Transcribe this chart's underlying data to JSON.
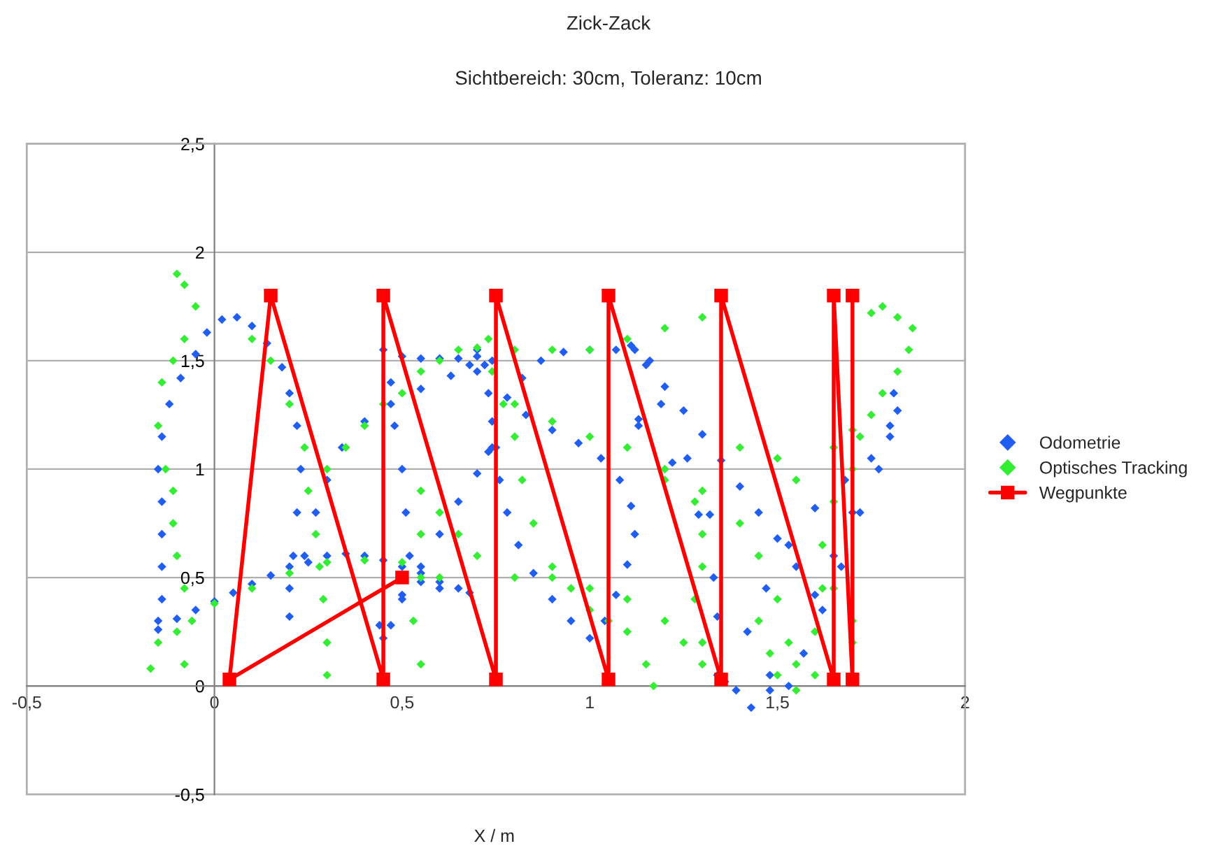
{
  "chart_data": {
    "type": "scatter",
    "title": "Zick-Zack",
    "subtitle": "Sichtbereich: 30cm, Toleranz: 10cm",
    "xlabel": "X / m",
    "xlim": [
      -0.5,
      2
    ],
    "ylim": [
      -0.5,
      2.5
    ],
    "xticks": [
      {
        "value": -0.5,
        "label": "-0,5"
      },
      0,
      {
        "value": 0.5,
        "label": "0,5"
      },
      1,
      {
        "value": 1.5,
        "label": "1,5"
      },
      2
    ],
    "yticks": [
      {
        "value": -0.5,
        "label": "-0,5"
      },
      0,
      {
        "value": 0.5,
        "label": "0,5"
      },
      1,
      {
        "value": 1.5,
        "label": "1,5"
      },
      2,
      {
        "value": 2.5,
        "label": "2,5"
      }
    ],
    "grid": "y",
    "legend": "right",
    "series": [
      {
        "name": "Odometrie",
        "marker": "diamond",
        "color": "#1f5ef0",
        "x": [
          -0.15,
          -0.1,
          -0.05,
          0,
          0.05,
          0.1,
          0.15,
          0.2,
          0.25,
          0.3,
          0.35,
          0.4,
          0.45,
          0.5,
          0.55,
          0.6,
          0.65,
          0.68,
          0.6,
          0.55,
          -0.15,
          -0.14,
          -0.14,
          -0.14,
          -0.14,
          -0.15,
          -0.14,
          -0.12,
          -0.09,
          -0.05,
          -0.02,
          0.02,
          0.06,
          0.1,
          0.14,
          0.18,
          0.2,
          0.22,
          0.23,
          0.22,
          0.21,
          0.2,
          0.2,
          0.24,
          0.27,
          0.3,
          0.34,
          0.4,
          0.47,
          0.55,
          0.63,
          0.72,
          0.45,
          0.5,
          0.55,
          0.6,
          0.65,
          0.7,
          0.74,
          0.7,
          0.68,
          0.47,
          0.48,
          0.5,
          0.51,
          0.52,
          0.5,
          0.47,
          0.45,
          0.44,
          0.5,
          0.55,
          0.6,
          0.65,
          0.7,
          0.74,
          0.7,
          0.73,
          0.74,
          0.73,
          0.78,
          0.82,
          0.87,
          0.93,
          1.0,
          1.07,
          1.12,
          1.16,
          0.83,
          0.9,
          0.97,
          1.03,
          1.08,
          1.11,
          1.12,
          1.1,
          1.07,
          1.04,
          1.0,
          0.95,
          0.9,
          0.85,
          0.81,
          0.78,
          0.76,
          0.75,
          1.11,
          1.15,
          1.2,
          1.25,
          1.3,
          1.35,
          1.4,
          1.45,
          1.5,
          1.55,
          1.6,
          1.13,
          1.19,
          1.26,
          1.32,
          1.33,
          1.36,
          1.13,
          1.22,
          1.29,
          1.34,
          1.34,
          1.39,
          1.43,
          1.48,
          1.48,
          1.42,
          1.47,
          1.53,
          1.6,
          1.68,
          1.75,
          1.8,
          1.82,
          1.53,
          1.57,
          1.62,
          1.67,
          1.72,
          1.77,
          1.8,
          1.65,
          1.7,
          1.81
        ],
        "values": [
          0.26,
          0.31,
          0.35,
          0.39,
          0.43,
          0.47,
          0.51,
          0.55,
          0.57,
          0.6,
          0.61,
          0.6,
          0.58,
          0.55,
          0.52,
          0.48,
          0.45,
          0.43,
          0.45,
          0.48,
          0.3,
          0.4,
          0.55,
          0.7,
          0.85,
          1.0,
          1.15,
          1.3,
          1.42,
          1.53,
          1.63,
          1.69,
          1.7,
          1.66,
          1.58,
          1.47,
          1.35,
          1.2,
          1.0,
          0.8,
          0.6,
          0.45,
          0.32,
          0.6,
          0.8,
          0.95,
          1.1,
          1.22,
          1.3,
          1.37,
          1.43,
          1.48,
          1.55,
          1.52,
          1.51,
          1.51,
          1.51,
          1.52,
          1.5,
          1.55,
          1.48,
          1.4,
          1.2,
          1.0,
          0.8,
          0.6,
          0.4,
          0.28,
          0.22,
          0.28,
          0.42,
          0.55,
          0.7,
          0.85,
          0.98,
          1.1,
          1.45,
          1.35,
          1.22,
          1.08,
          1.33,
          1.42,
          1.5,
          1.54,
          1.55,
          1.55,
          1.55,
          1.5,
          1.25,
          1.18,
          1.12,
          1.05,
          0.95,
          0.83,
          0.7,
          0.56,
          0.42,
          0.3,
          0.22,
          0.3,
          0.4,
          0.52,
          0.65,
          0.8,
          0.95,
          1.1,
          1.57,
          1.48,
          1.38,
          1.27,
          1.16,
          1.04,
          0.92,
          0.8,
          0.68,
          0.55,
          0.42,
          1.23,
          1.3,
          1.05,
          0.79,
          0.5,
          0.02,
          1.2,
          1.03,
          0.79,
          0.32,
          0.05,
          -0.02,
          -0.1,
          -0.02,
          0.05,
          0.25,
          0.45,
          0.65,
          0.82,
          0.95,
          1.05,
          1.2,
          1.27,
          0.0,
          0.15,
          0.35,
          0.55,
          0.8,
          1.0,
          1.15,
          0.6,
          0.8,
          1.35
        ]
      },
      {
        "name": "Optisches Tracking",
        "marker": "diamond",
        "color": "#33ee33",
        "x": [
          -0.17,
          -0.15,
          -0.08,
          -0.1,
          -0.08,
          -0.05,
          -0.08,
          -0.11,
          -0.14,
          -0.15,
          -0.13,
          -0.11,
          -0.11,
          -0.1,
          -0.08,
          -0.06,
          -0.1,
          0.0,
          0.1,
          0.2,
          0.3,
          0.4,
          0.5,
          0.6,
          0.1,
          0.15,
          0.2,
          0.24,
          0.25,
          0.27,
          0.28,
          0.29,
          0.3,
          0.3,
          0.3,
          0.35,
          0.4,
          0.45,
          0.5,
          0.55,
          0.6,
          0.65,
          0.7,
          0.55,
          0.55,
          0.55,
          0.53,
          0.55,
          0.6,
          0.65,
          0.7,
          0.73,
          0.74,
          0.77,
          0.8,
          0.82,
          0.85,
          0.9,
          0.95,
          1.0,
          1.05,
          1.1,
          1.15,
          1.17,
          0.8,
          0.9,
          1.0,
          1.1,
          1.2,
          1.3,
          0.8,
          0.9,
          1.0,
          1.1,
          1.2,
          1.28,
          1.3,
          1.3,
          1.28,
          1.3,
          0.8,
          0.9,
          1.0,
          1.1,
          1.2,
          1.25,
          1.3,
          1.2,
          1.3,
          1.4,
          1.45,
          1.5,
          1.53,
          1.55,
          1.45,
          1.48,
          1.5,
          1.55,
          1.6,
          1.62,
          1.62,
          1.65,
          1.7,
          1.72,
          1.75,
          1.78,
          1.82,
          1.85,
          1.86,
          1.82,
          1.78,
          1.75,
          1.65,
          1.7,
          1.7,
          1.6,
          1.4,
          1.5,
          1.55,
          1.65,
          1.7
        ],
        "values": [
          0.08,
          0.2,
          0.1,
          1.9,
          1.85,
          1.75,
          1.6,
          1.5,
          1.4,
          1.2,
          1.0,
          0.9,
          0.75,
          0.6,
          0.45,
          0.3,
          0.25,
          0.38,
          0.45,
          0.52,
          0.57,
          0.58,
          0.57,
          0.5,
          1.6,
          1.5,
          1.3,
          1.1,
          0.9,
          0.7,
          0.55,
          0.4,
          0.2,
          0.05,
          1.0,
          1.1,
          1.2,
          1.3,
          1.35,
          1.45,
          1.5,
          1.55,
          1.56,
          0.9,
          0.7,
          0.5,
          0.3,
          0.1,
          0.8,
          0.7,
          0.6,
          1.6,
          1.45,
          1.3,
          1.15,
          0.95,
          0.75,
          0.55,
          0.45,
          0.35,
          0.3,
          0.25,
          0.1,
          0.0,
          1.55,
          1.55,
          1.55,
          1.6,
          1.65,
          1.7,
          1.3,
          1.22,
          1.15,
          1.1,
          1.0,
          0.85,
          0.7,
          0.55,
          0.4,
          0.2,
          0.5,
          0.5,
          0.45,
          0.4,
          0.3,
          0.2,
          0.1,
          0.95,
          0.9,
          0.75,
          0.6,
          0.4,
          0.2,
          -0.02,
          0.3,
          0.15,
          0.05,
          0.1,
          0.25,
          0.45,
          0.65,
          0.85,
          1.0,
          1.15,
          1.25,
          1.35,
          1.45,
          1.55,
          1.65,
          1.7,
          1.75,
          1.72,
          0.45,
          0.3,
          0.2,
          0.05,
          1.1,
          1.05,
          0.95,
          1.1,
          1.18
        ]
      },
      {
        "name": "Wegpunkte",
        "type": "line",
        "marker": "square",
        "line_style": "solid",
        "color": "#ff0000",
        "x": [
          0.5,
          0.04,
          0.15,
          0.45,
          0.45,
          0.75,
          0.75,
          1.05,
          1.05,
          1.35,
          1.35,
          1.65,
          1.65,
          1.7,
          1.7
        ],
        "values": [
          0.5,
          0.03,
          1.8,
          0.03,
          1.8,
          0.03,
          1.8,
          0.03,
          1.8,
          0.03,
          1.8,
          0.03,
          1.8,
          0.03,
          1.8
        ]
      }
    ]
  }
}
